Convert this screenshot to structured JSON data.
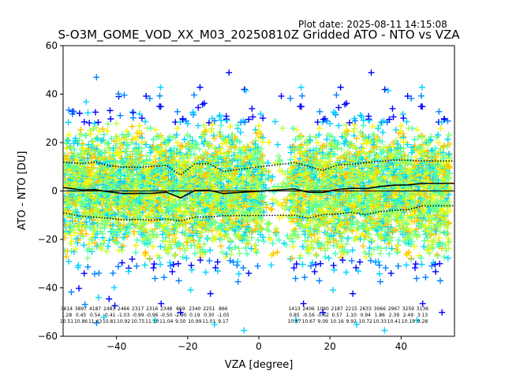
{
  "chart_data": {
    "type": "scatter",
    "title": "S-O3M_GOME_VOD_XX_M03_20250810Z Gridded ATO - NTO vs VZA",
    "plot_date": "Plot date: 2025-08-11 14:15:08",
    "xlabel": "VZA [degree]",
    "ylabel": "ATO - NTO [DU]",
    "xlim": [
      -55,
      55
    ],
    "ylim": [
      -60,
      60
    ],
    "xticks": [
      "−40",
      "−20",
      "0",
      "20",
      "40"
    ],
    "xtick_values": [
      -40,
      -20,
      0,
      20,
      40
    ],
    "yticks": [
      "−60",
      "−40",
      "−20",
      "0",
      "20",
      "40",
      "60"
    ],
    "ytick_values": [
      -60,
      -40,
      -20,
      0,
      20,
      40,
      60
    ],
    "marker": "+",
    "colors": [
      "#0000ff",
      "#0080ff",
      "#00d4ff",
      "#40ffb7",
      "#7dff7a",
      "#b8ff3f",
      "#f4f802",
      "#ffc400"
    ],
    "zero_line": 0,
    "bins": [
      {
        "x": -54,
        "n": "3614",
        "mean": "1.28",
        "sd": "10.51"
      },
      {
        "x": -50,
        "n": "3897",
        "mean": "0.45",
        "sd": "10.86"
      },
      {
        "x": -46,
        "n": "4187",
        "mean": "0.54",
        "sd": "11.43"
      },
      {
        "x": -42,
        "n": "2483",
        "mean": "-0.41",
        "sd": "10.81"
      },
      {
        "x": -38,
        "n": "2466",
        "mean": "-1.03",
        "sd": "10.92"
      },
      {
        "x": -34,
        "n": "2317",
        "mean": "-0.99",
        "sd": "10.75"
      },
      {
        "x": -30,
        "n": "2316",
        "mean": "-0.96",
        "sd": "11.10"
      },
      {
        "x": -26,
        "n": "2348",
        "mean": "-0.50",
        "sd": "11.04"
      },
      {
        "x": -22,
        "n": "869",
        "mean": "-2.90",
        "sd": "9.50"
      },
      {
        "x": -18,
        "n": "2340",
        "mean": "0.19",
        "sd": "10.99"
      },
      {
        "x": -14,
        "n": "2251",
        "mean": "0.30",
        "sd": "11.01"
      },
      {
        "x": -10,
        "n": "866",
        "mean": "-1.05",
        "sd": "9.17"
      },
      {
        "x": 10,
        "n": "1413",
        "mean": "0.85",
        "sd": "10.87"
      },
      {
        "x": 14,
        "n": "2406",
        "mean": "-0.56",
        "sd": "10.67"
      },
      {
        "x": 18,
        "n": "1090",
        "mean": "-0.62",
        "sd": "9.09"
      },
      {
        "x": 22,
        "n": "2187",
        "mean": "0.57",
        "sd": "10.16"
      },
      {
        "x": 26,
        "n": "2215",
        "mean": "1.10",
        "sd": "9.92"
      },
      {
        "x": 30,
        "n": "2633",
        "mean": "0.94",
        "sd": "10.72"
      },
      {
        "x": 34,
        "n": "3066",
        "mean": "1.86",
        "sd": "10.33"
      },
      {
        "x": 38,
        "n": "2967",
        "mean": "2.39",
        "sd": "10.41"
      },
      {
        "x": 42,
        "n": "3259",
        "mean": "2.49",
        "sd": "10.19"
      },
      {
        "x": 46,
        "n": "3136",
        "mean": "3.13",
        "sd": "9.28"
      }
    ]
  }
}
